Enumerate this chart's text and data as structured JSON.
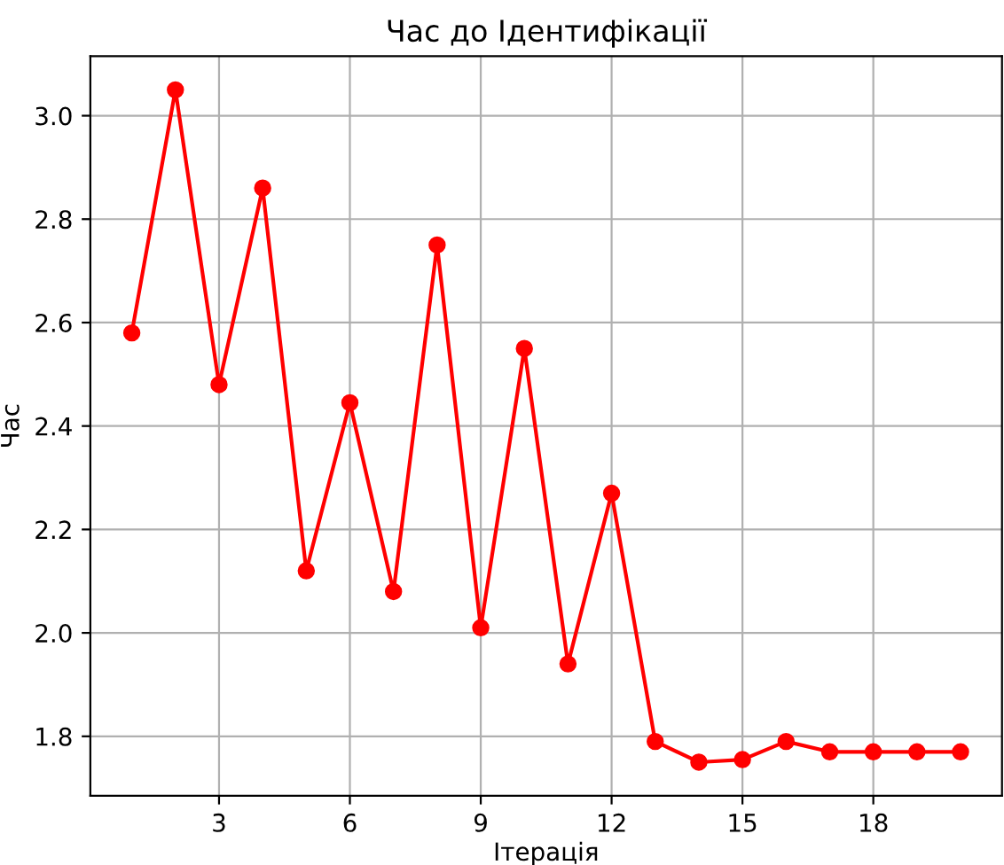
{
  "chart_data": {
    "type": "line",
    "title": "Час до Ідентифікації",
    "xlabel": "Ітерація",
    "ylabel": "Час",
    "x": [
      1,
      2,
      3,
      4,
      5,
      6,
      7,
      8,
      9,
      10,
      11,
      12,
      13,
      14,
      15,
      16,
      17,
      18,
      19,
      20
    ],
    "series": [
      {
        "color": "#ff0000",
        "values": [
          2.58,
          3.05,
          2.48,
          2.86,
          2.12,
          2.445,
          2.08,
          2.75,
          2.01,
          2.55,
          1.94,
          2.27,
          1.79,
          1.75,
          1.755,
          1.79,
          1.77,
          1.77,
          1.77,
          1.77
        ]
      }
    ],
    "xlim": [
      0.05,
      20.95
    ],
    "ylim": [
      1.685,
      3.115
    ],
    "xticks": [
      3,
      6,
      9,
      12,
      15,
      18
    ],
    "yticks": [
      {
        "value": 1.8,
        "label": "1.8"
      },
      {
        "value": 2.0,
        "label": "2.0"
      },
      {
        "value": 2.2,
        "label": "2.2"
      },
      {
        "value": 2.4,
        "label": "2.4"
      },
      {
        "value": 2.6,
        "label": "2.6"
      },
      {
        "value": 2.8,
        "label": "2.8"
      },
      {
        "value": 3.0,
        "label": "3.0"
      }
    ],
    "grid": true,
    "marker": "circle",
    "line_style": "solid"
  }
}
